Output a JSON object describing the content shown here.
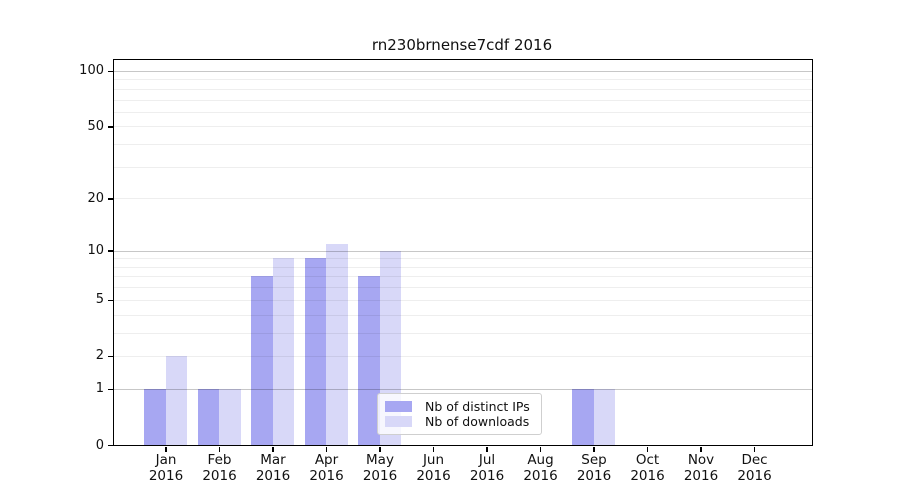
{
  "chart_data": {
    "type": "bar",
    "title": "rn230brnense7cdf 2016",
    "xlabel": "",
    "ylabel": "",
    "yscale": "log1p",
    "ylim": [
      0,
      114
    ],
    "y_ticks": [
      100,
      50,
      20,
      10,
      5,
      2,
      1,
      0
    ],
    "grid": true,
    "legend_position": "inside lower center-right",
    "categories": [
      "Jan",
      "Feb",
      "Mar",
      "Apr",
      "May",
      "Jun",
      "Jul",
      "Aug",
      "Sep",
      "Oct",
      "Nov",
      "Dec"
    ],
    "year_label": "2016",
    "series": [
      {
        "name": "Nb of distinct IPs",
        "color": "#a7a7f2",
        "values": [
          1,
          1,
          7,
          9,
          7,
          0,
          0,
          0,
          1,
          0,
          0,
          0
        ]
      },
      {
        "name": "Nb of downloads",
        "color": "#d8d8f8",
        "values": [
          2,
          1,
          9,
          11,
          10,
          0,
          0,
          0,
          1,
          0,
          0,
          0
        ]
      }
    ]
  },
  "colors": {
    "background": "#ffffff",
    "spine": "#000000",
    "grid_minor": "#ebebeb",
    "grid_major": "#c7c7c7",
    "legend_border": "#cfcfcf",
    "text": "#111111"
  }
}
